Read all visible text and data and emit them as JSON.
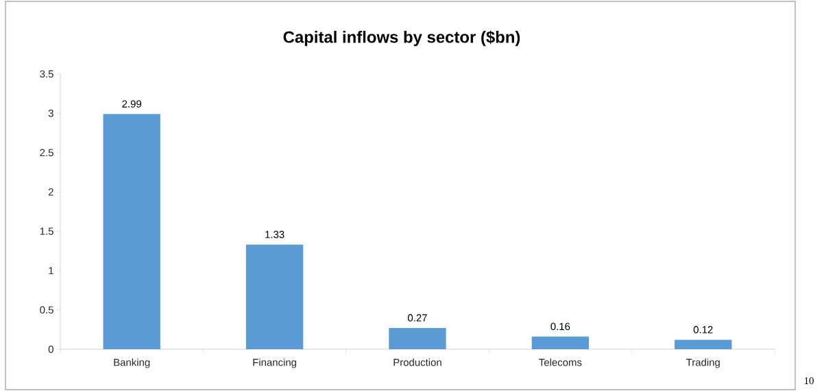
{
  "chart_data": {
    "type": "bar",
    "title": "Capital inflows by sector ($bn)",
    "categories": [
      "Banking",
      "Financing",
      "Production",
      "Telecoms",
      "Trading"
    ],
    "values": [
      2.99,
      1.33,
      0.27,
      0.16,
      0.12
    ],
    "color": "#5b9bd5",
    "ylim": [
      0,
      3.5
    ],
    "yticks": [
      0,
      0.5,
      1,
      1.5,
      2,
      2.5,
      3,
      3.5
    ],
    "grid": false,
    "data_labels": true,
    "annotations": [
      "10"
    ]
  }
}
